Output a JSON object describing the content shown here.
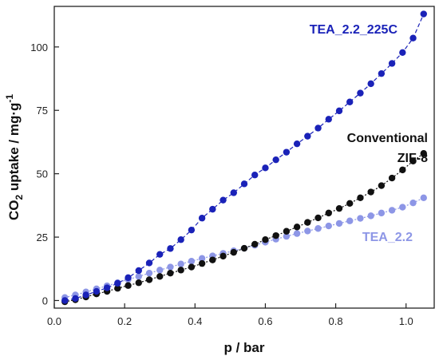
{
  "chart_data": {
    "type": "scatter",
    "xlabel": "p / bar",
    "ylabel": "CO2 uptake / mg·g-1",
    "ylabel_parts": {
      "main": "CO",
      "sub": "2",
      "rest": " uptake / mg·g",
      "sup": "-1"
    },
    "xlim": [
      0.0,
      1.08
    ],
    "ylim": [
      -3,
      116
    ],
    "xticks": [
      0.0,
      0.2,
      0.4,
      0.6,
      0.8,
      1.0
    ],
    "xtick_labels": [
      "0.0",
      "0.2",
      "0.4",
      "0.6",
      "0.8",
      "1.0"
    ],
    "yticks": [
      0,
      25,
      50,
      75,
      100
    ],
    "ytick_labels": [
      "0",
      "25",
      "50",
      "75",
      "100"
    ],
    "grid": false,
    "series": [
      {
        "name": "TEA_2.2_225C",
        "label_lines": [
          "TEA_2.2_225C"
        ],
        "color": "#1a22b8",
        "line_style": "dashed",
        "x": [
          0.03,
          0.06,
          0.09,
          0.12,
          0.15,
          0.18,
          0.21,
          0.24,
          0.27,
          0.3,
          0.33,
          0.36,
          0.39,
          0.42,
          0.45,
          0.48,
          0.51,
          0.54,
          0.57,
          0.6,
          0.63,
          0.66,
          0.69,
          0.72,
          0.75,
          0.78,
          0.81,
          0.84,
          0.87,
          0.9,
          0.93,
          0.96,
          0.99,
          1.02,
          1.05
        ],
        "y": [
          0.0,
          0.8,
          2.2,
          3.6,
          5.0,
          6.8,
          9.0,
          11.8,
          14.8,
          18.2,
          20.5,
          24.0,
          27.8,
          32.5,
          36.0,
          39.6,
          42.5,
          46.0,
          49.5,
          52.3,
          55.5,
          58.5,
          61.8,
          64.8,
          68.0,
          71.5,
          74.8,
          78.3,
          81.8,
          85.5,
          89.5,
          93.5,
          97.8,
          103.5,
          113.0
        ]
      },
      {
        "name": "Conventional ZIF-8",
        "label_lines": [
          "Conventional",
          "ZIF-8"
        ],
        "color": "#111111",
        "line_style": "dotted",
        "x": [
          0.03,
          0.06,
          0.09,
          0.12,
          0.15,
          0.18,
          0.21,
          0.24,
          0.27,
          0.3,
          0.33,
          0.36,
          0.39,
          0.42,
          0.45,
          0.48,
          0.51,
          0.54,
          0.57,
          0.6,
          0.63,
          0.66,
          0.69,
          0.72,
          0.75,
          0.78,
          0.81,
          0.84,
          0.87,
          0.9,
          0.93,
          0.96,
          0.99,
          1.02,
          1.05
        ],
        "y": [
          -0.5,
          0.3,
          1.4,
          2.6,
          3.6,
          4.8,
          5.9,
          7.0,
          8.2,
          9.5,
          10.8,
          12.0,
          13.2,
          14.6,
          16.0,
          17.5,
          19.0,
          20.6,
          22.2,
          24.0,
          25.6,
          27.3,
          29.0,
          30.8,
          32.6,
          34.5,
          36.3,
          38.3,
          40.5,
          42.8,
          45.3,
          48.3,
          51.5,
          55.0,
          58.0
        ]
      },
      {
        "name": "TEA_2.2",
        "label_lines": [
          "TEA_2.2"
        ],
        "color": "#8d96e6",
        "line_style": "dotted",
        "x": [
          0.03,
          0.06,
          0.09,
          0.12,
          0.15,
          0.18,
          0.21,
          0.24,
          0.27,
          0.3,
          0.33,
          0.36,
          0.39,
          0.42,
          0.45,
          0.48,
          0.51,
          0.54,
          0.57,
          0.6,
          0.63,
          0.66,
          0.69,
          0.72,
          0.75,
          0.78,
          0.81,
          0.84,
          0.87,
          0.9,
          0.93,
          0.96,
          0.99,
          1.02,
          1.05
        ],
        "y": [
          1.2,
          2.2,
          3.4,
          4.6,
          5.8,
          7.0,
          8.3,
          9.5,
          10.8,
          12.0,
          13.2,
          14.4,
          15.5,
          16.6,
          17.6,
          18.6,
          19.6,
          20.6,
          21.8,
          23.0,
          24.2,
          25.3,
          26.4,
          27.4,
          28.4,
          29.4,
          30.4,
          31.4,
          32.4,
          33.4,
          34.5,
          35.6,
          36.8,
          38.5,
          40.5
        ]
      }
    ]
  }
}
